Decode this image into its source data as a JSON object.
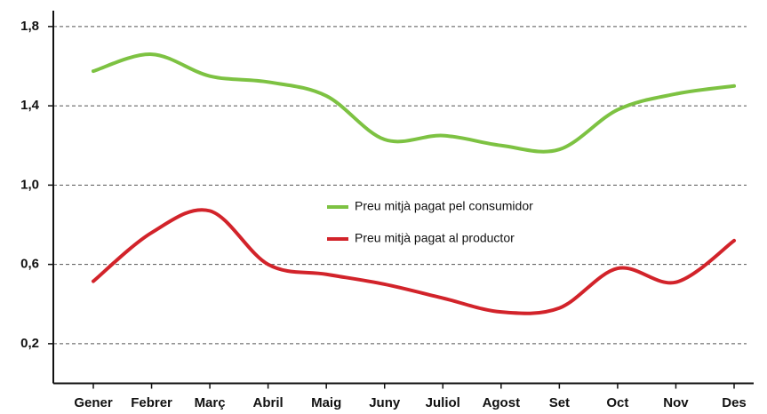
{
  "chart_data": {
    "type": "line",
    "categories": [
      "Gener",
      "Febrer",
      "Març",
      "Abril",
      "Maig",
      "Juny",
      "Juliol",
      "Agost",
      "Set",
      "Oct",
      "Nov",
      "Des"
    ],
    "series": [
      {
        "name": "Preu mitjà pagat pel consumidor",
        "color": "#7dc242",
        "values": [
          1.575,
          1.66,
          1.55,
          1.52,
          1.45,
          1.23,
          1.25,
          1.2,
          1.18,
          1.38,
          1.46,
          1.5
        ]
      },
      {
        "name": "Preu mitjà pagat al productor",
        "color": "#d2232a",
        "values": [
          0.515,
          0.76,
          0.87,
          0.6,
          0.55,
          0.5,
          0.43,
          0.36,
          0.38,
          0.58,
          0.51,
          0.72
        ]
      }
    ],
    "ylim": [
      0,
      1.88
    ],
    "yticks": [
      {
        "value": 0.2,
        "label": "0,2"
      },
      {
        "value": 0.6,
        "label": "0,6"
      },
      {
        "value": 1.0,
        "label": "1,0"
      },
      {
        "value": 1.4,
        "label": "1,4"
      },
      {
        "value": 1.8,
        "label": "1,8"
      }
    ],
    "grid": true
  }
}
